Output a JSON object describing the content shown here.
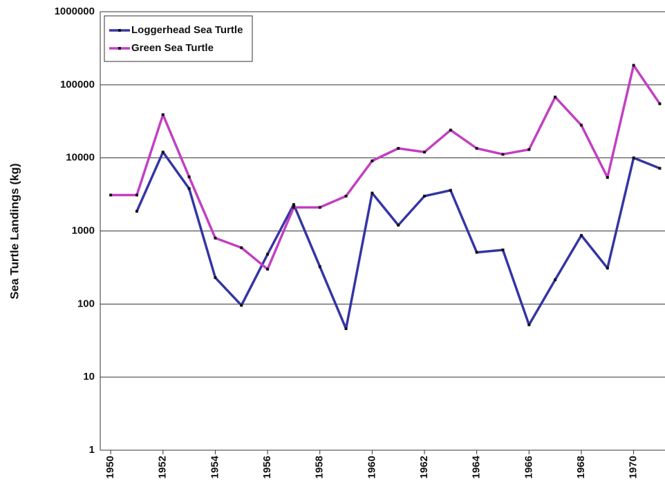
{
  "chart_data": {
    "type": "line",
    "y_label": "Sea Turtle Landings (kg)",
    "x": [
      1950,
      1951,
      1952,
      1953,
      1954,
      1955,
      1956,
      1957,
      1958,
      1959,
      1960,
      1961,
      1962,
      1963,
      1964,
      1965,
      1966,
      1967,
      1968,
      1969,
      1970,
      1971
    ],
    "series": [
      {
        "name": "Loggerhead Sea Turtle",
        "color": "#3535a5",
        "values": [
          null,
          1860,
          12000,
          3800,
          230,
          96,
          480,
          2300,
          325,
          46,
          3300,
          1200,
          3000,
          3600,
          510,
          550,
          52,
          215,
          870,
          310,
          10000,
          7200
        ]
      },
      {
        "name": "Green Sea Turtle",
        "color": "#c23fc2",
        "values": [
          3100,
          3100,
          39000,
          5500,
          800,
          590,
          300,
          2100,
          2100,
          3000,
          9100,
          13500,
          12000,
          24000,
          13500,
          11200,
          13000,
          68000,
          28000,
          5400,
          185000,
          55000
        ]
      }
    ],
    "xlim": [
      1949.6,
      1971.2
    ],
    "xticks": [
      1950,
      1952,
      1954,
      1956,
      1958,
      1960,
      1962,
      1964,
      1966,
      1968,
      1970
    ],
    "ylim": [
      1,
      1000000
    ],
    "yticks": [
      1,
      10,
      100,
      1000,
      10000,
      100000,
      1000000
    ],
    "log_y": true,
    "grid": true,
    "legend": "top-left"
  }
}
